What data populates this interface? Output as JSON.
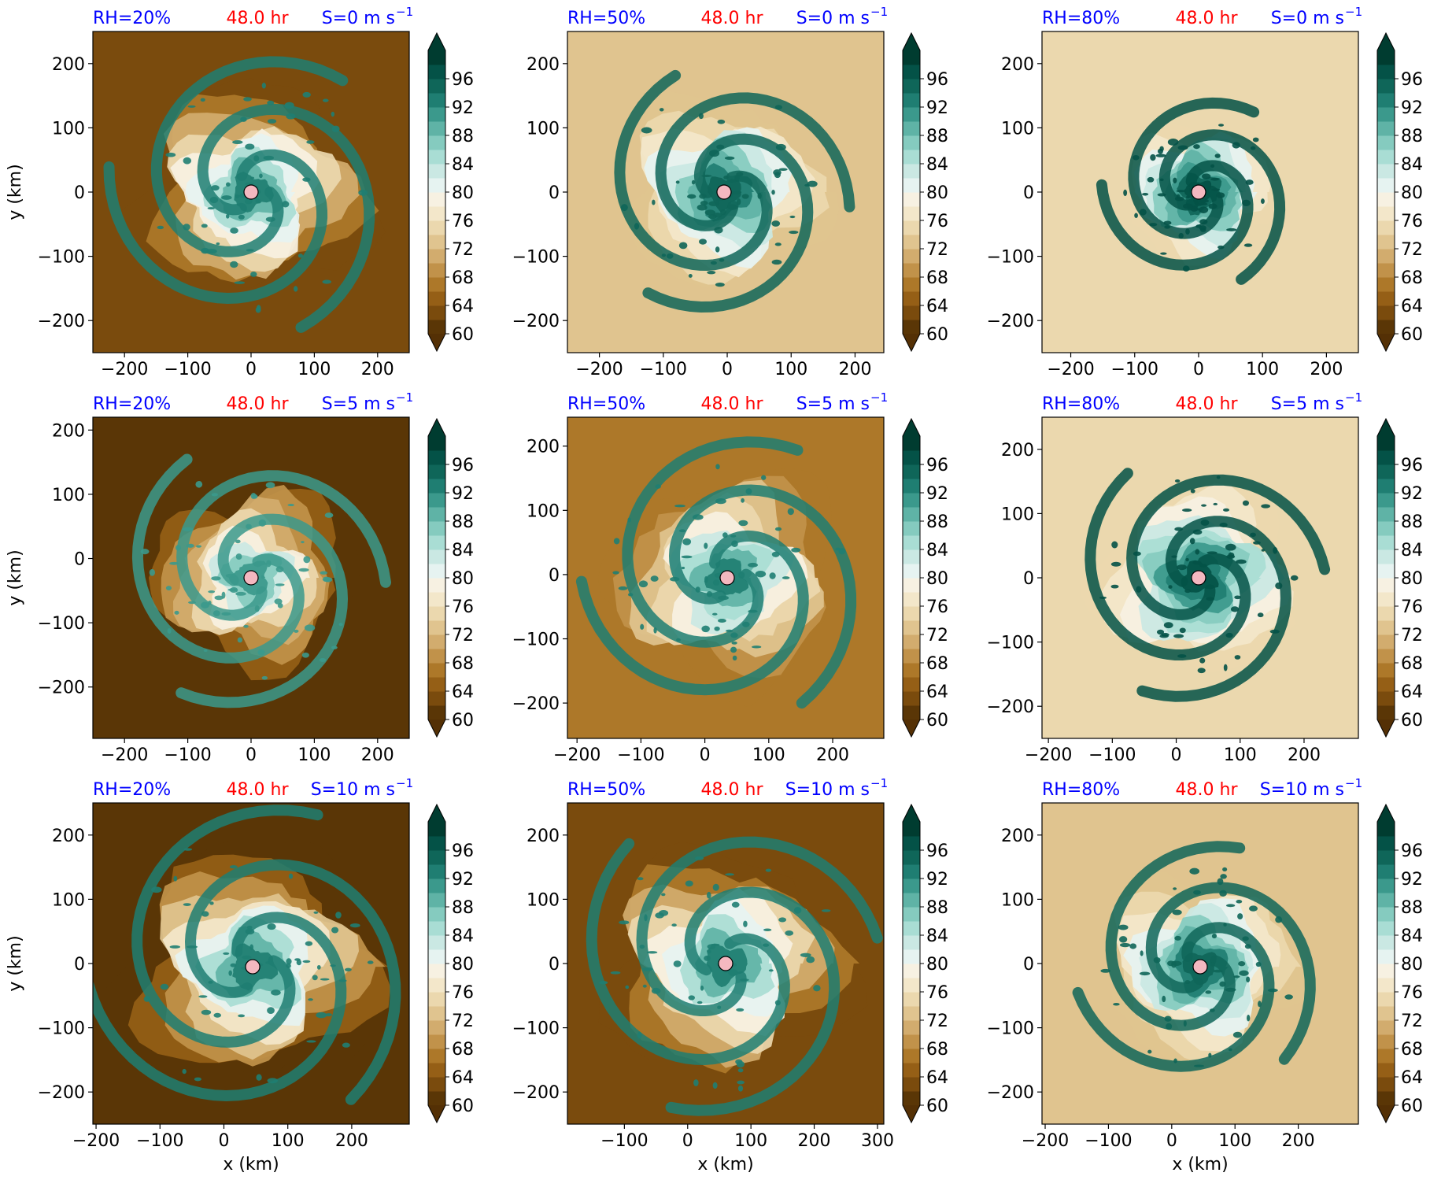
{
  "figure": {
    "ylabel": "y (km)",
    "xlabel": "x (km)",
    "time_label": "48.0 hr",
    "title_color": "#0000ff",
    "time_color": "#ff0000",
    "marker_color": "#f4b8c0"
  },
  "colorbar": {
    "ticks": [
      "96",
      "92",
      "88",
      "84",
      "80",
      "76",
      "72",
      "68",
      "64",
      "60"
    ],
    "levels": [
      60,
      62,
      64,
      66,
      68,
      70,
      72,
      74,
      76,
      78,
      80,
      82,
      84,
      86,
      88,
      90,
      92,
      94,
      96,
      98
    ],
    "colors": [
      "#5a3606",
      "#7a4b0d",
      "#955f16",
      "#ad7829",
      "#c1924a",
      "#d2ac6e",
      "#e0c48f",
      "#ebd8ae",
      "#f3e7ca",
      "#f7f1e2",
      "#e6f3f1",
      "#cae8e3",
      "#a9ddd4",
      "#85cbbf",
      "#5fb3a6",
      "#3b998c",
      "#1f7e72",
      "#0f6659",
      "#045247",
      "#003c30"
    ],
    "under_color": "#543005",
    "over_color": "#003c30"
  },
  "chart_data": [
    {
      "type": "heatmap",
      "title_left": "RH=20%",
      "title_right": "S=0 m s",
      "title_sup": "−1",
      "center": [
        0,
        0
      ],
      "xlim": [
        -250,
        250
      ],
      "ylim": [
        -250,
        250
      ],
      "xticks": [
        -200,
        -100,
        0,
        100,
        200
      ],
      "xtick_labels": [
        "−200",
        "−100",
        "0",
        "100",
        "200"
      ],
      "yticks": [
        -200,
        -100,
        0,
        100,
        200
      ],
      "ytick_labels": [
        "−200",
        "−100",
        "0",
        "100",
        "200"
      ],
      "show_ylabel": true,
      "show_xlabel": false,
      "background_rh": 63,
      "center_rh": 93,
      "radius_km": 150
    },
    {
      "type": "heatmap",
      "title_left": "RH=50%",
      "title_right": "S=0 m s",
      "title_sup": "−1",
      "center": [
        -5,
        0
      ],
      "xlim": [
        -250,
        245
      ],
      "ylim": [
        -250,
        250
      ],
      "xticks": [
        -200,
        -100,
        0,
        100,
        200
      ],
      "xtick_labels": [
        "−200",
        "−100",
        "0",
        "100",
        "200"
      ],
      "yticks": [
        -200,
        -100,
        0,
        100,
        200
      ],
      "ytick_labels": [
        "−200",
        "−100",
        "0",
        "100",
        "200"
      ],
      "show_ylabel": false,
      "show_xlabel": false,
      "background_rh": 72,
      "center_rh": 95,
      "radius_km": 130
    },
    {
      "type": "heatmap",
      "title_left": "RH=80%",
      "title_right": "S=0 m s",
      "title_sup": "−1",
      "center": [
        0,
        0
      ],
      "xlim": [
        -245,
        250
      ],
      "ylim": [
        -250,
        250
      ],
      "xticks": [
        -200,
        -100,
        0,
        100,
        200
      ],
      "xtick_labels": [
        "−200",
        "−100",
        "0",
        "100",
        "200"
      ],
      "yticks": [
        -200,
        -100,
        0,
        100,
        200
      ],
      "ytick_labels": [
        "−200",
        "−100",
        "0",
        "100",
        "200"
      ],
      "show_ylabel": false,
      "show_xlabel": false,
      "background_rh": 75,
      "center_rh": 97,
      "radius_km": 100
    },
    {
      "type": "heatmap",
      "title_left": "RH=20%",
      "title_right": "S=5 m s",
      "title_sup": "−1",
      "center": [
        0,
        -30
      ],
      "xlim": [
        -250,
        250
      ],
      "ylim": [
        -280,
        220
      ],
      "xticks": [
        -200,
        -100,
        0,
        100,
        200
      ],
      "xtick_labels": [
        "−200",
        "−100",
        "0",
        "100",
        "200"
      ],
      "yticks": [
        -200,
        -100,
        0,
        100,
        200
      ],
      "ytick_labels": [
        "−200",
        "−100",
        "0",
        "100",
        "200"
      ],
      "show_ylabel": true,
      "show_xlabel": false,
      "background_rh": 61,
      "center_rh": 90,
      "radius_km": 140
    },
    {
      "type": "heatmap",
      "title_left": "RH=50%",
      "title_right": "S=5 m s",
      "title_sup": "−1",
      "center": [
        35,
        -5
      ],
      "xlim": [
        -215,
        280
      ],
      "ylim": [
        -255,
        245
      ],
      "xticks": [
        -200,
        -100,
        0,
        100,
        200
      ],
      "xtick_labels": [
        "−200",
        "−100",
        "0",
        "100",
        "200"
      ],
      "yticks": [
        -200,
        -100,
        0,
        100,
        200
      ],
      "ytick_labels": [
        "−200",
        "−100",
        "0",
        "100",
        "200"
      ],
      "show_ylabel": false,
      "show_xlabel": false,
      "background_rh": 66,
      "center_rh": 92,
      "radius_km": 150
    },
    {
      "type": "heatmap",
      "title_left": "RH=80%",
      "title_right": "S=5 m s",
      "title_sup": "−1",
      "center": [
        35,
        0
      ],
      "xlim": [
        -210,
        285
      ],
      "ylim": [
        -250,
        250
      ],
      "xticks": [
        -200,
        -100,
        0,
        100,
        200
      ],
      "xtick_labels": [
        "−200",
        "−100",
        "0",
        "100",
        "200"
      ],
      "yticks": [
        -200,
        -100,
        0,
        100,
        200
      ],
      "ytick_labels": [
        "−200",
        "−100",
        "0",
        "100",
        "200"
      ],
      "show_ylabel": false,
      "show_xlabel": false,
      "background_rh": 74,
      "center_rh": 96,
      "radius_km": 130
    },
    {
      "type": "heatmap",
      "title_left": "RH=20%",
      "title_right": "S=10 m s",
      "title_sup": "−1",
      "center": [
        45,
        -5
      ],
      "xlim": [
        -205,
        290
      ],
      "ylim": [
        -250,
        250
      ],
      "xticks": [
        -200,
        -100,
        0,
        100,
        200
      ],
      "xtick_labels": [
        "−200",
        "−100",
        "0",
        "100",
        "200"
      ],
      "yticks": [
        -200,
        -100,
        0,
        100,
        200
      ],
      "ytick_labels": [
        "−200",
        "−100",
        "0",
        "100",
        "200"
      ],
      "show_ylabel": true,
      "show_xlabel": true,
      "background_rh": 61,
      "center_rh": 93,
      "radius_km": 170
    },
    {
      "type": "heatmap",
      "title_left": "RH=50%",
      "title_right": "S=10 m s",
      "title_sup": "−1",
      "center": [
        60,
        0
      ],
      "xlim": [
        -190,
        310
      ],
      "ylim": [
        -250,
        250
      ],
      "xticks": [
        -100,
        0,
        100,
        200,
        300
      ],
      "xtick_labels": [
        "−100",
        "0",
        "100",
        "200",
        "300"
      ],
      "yticks": [
        -200,
        -100,
        0,
        100,
        200
      ],
      "ytick_labels": [
        "−200",
        "−100",
        "0",
        "100",
        "200"
      ],
      "show_ylabel": false,
      "show_xlabel": true,
      "background_rh": 63,
      "center_rh": 93,
      "radius_km": 160
    },
    {
      "type": "heatmap",
      "title_left": "RH=80%",
      "title_right": "S=10 m s",
      "title_sup": "−1",
      "center": [
        45,
        -5
      ],
      "xlim": [
        -205,
        295
      ],
      "ylim": [
        -250,
        250
      ],
      "xticks": [
        -200,
        -100,
        0,
        100,
        200
      ],
      "xtick_labels": [
        "−200",
        "−100",
        "0",
        "100",
        "200"
      ],
      "yticks": [
        -200,
        -100,
        0,
        100,
        200
      ],
      "ytick_labels": [
        "−200",
        "−100",
        "0",
        "100",
        "200"
      ],
      "show_ylabel": false,
      "show_xlabel": true,
      "background_rh": 72,
      "center_rh": 95,
      "radius_km": 130
    }
  ]
}
